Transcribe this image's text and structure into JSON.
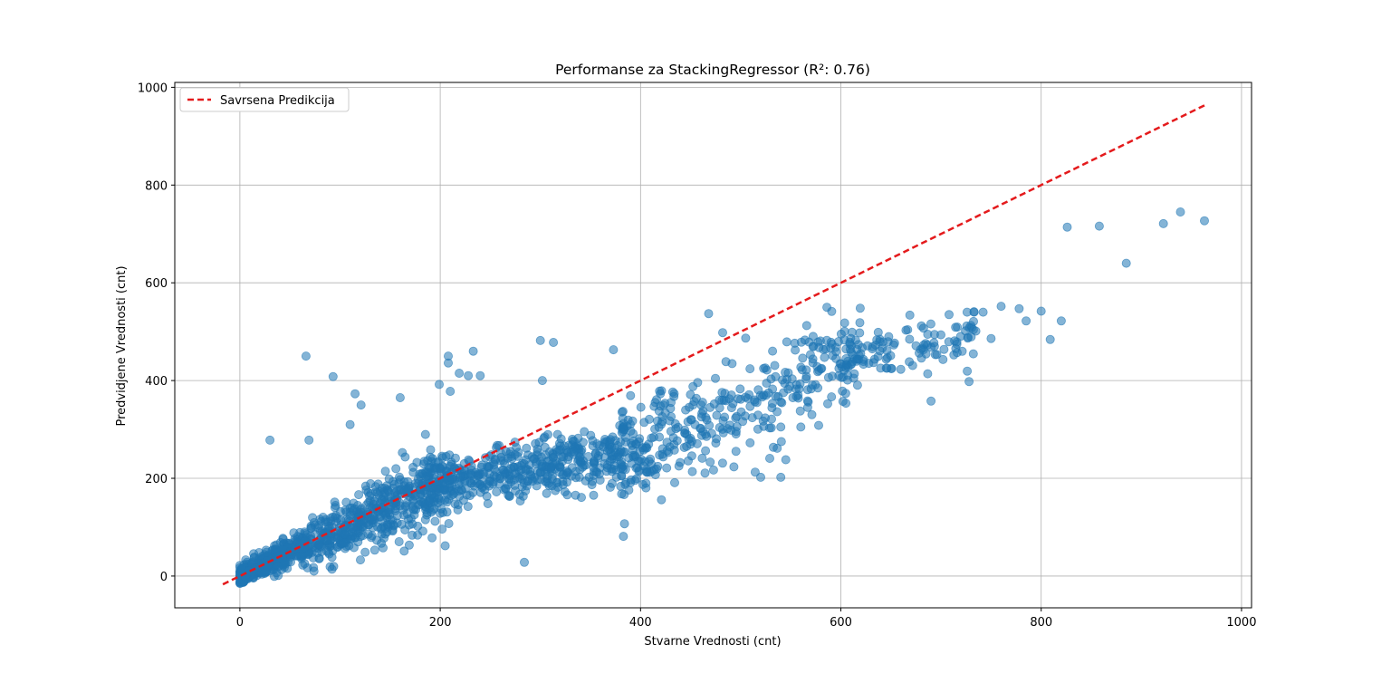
{
  "chart_data": {
    "type": "scatter",
    "title": "Performanse za StackingRegressor (R²: 0.76)",
    "xlabel": "Stvarne Vrednosti (cnt)",
    "ylabel": "Predvidjene Vrednosti (cnt)",
    "xlim": [
      -65,
      1010
    ],
    "ylim": [
      -65,
      1010
    ],
    "xticks": [
      "0",
      "200",
      "400",
      "600",
      "800",
      "1000"
    ],
    "yticks": [
      "0",
      "200",
      "400",
      "600",
      "800",
      "1000"
    ],
    "xtick_values": [
      0,
      200,
      400,
      600,
      800,
      1000
    ],
    "ytick_values": [
      0,
      200,
      400,
      600,
      800,
      1000
    ],
    "grid": true,
    "legend_position": "top-left",
    "point_color": "#1f77b4",
    "point_alpha": 0.55,
    "reference_line": {
      "name": "Savrsena Predikcija",
      "color": "#e41a1c",
      "style": "dashed",
      "x": [
        -17,
        963
      ],
      "y": [
        -17,
        963
      ]
    },
    "outliers": [
      {
        "x": 66,
        "y": 450
      },
      {
        "x": 93,
        "y": 408
      },
      {
        "x": 30,
        "y": 278
      },
      {
        "x": 69,
        "y": 278
      },
      {
        "x": 110,
        "y": 310
      },
      {
        "x": 115,
        "y": 373
      },
      {
        "x": 121,
        "y": 350
      },
      {
        "x": 160,
        "y": 365
      },
      {
        "x": 199,
        "y": 392
      },
      {
        "x": 208,
        "y": 450
      },
      {
        "x": 208,
        "y": 436
      },
      {
        "x": 210,
        "y": 378
      },
      {
        "x": 233,
        "y": 460
      },
      {
        "x": 219,
        "y": 415
      },
      {
        "x": 228,
        "y": 410
      },
      {
        "x": 240,
        "y": 410
      },
      {
        "x": 300,
        "y": 482
      },
      {
        "x": 313,
        "y": 478
      },
      {
        "x": 302,
        "y": 400
      },
      {
        "x": 373,
        "y": 463
      },
      {
        "x": 468,
        "y": 537
      },
      {
        "x": 482,
        "y": 498
      },
      {
        "x": 284,
        "y": 28
      },
      {
        "x": 205,
        "y": 62
      },
      {
        "x": 74,
        "y": 10
      },
      {
        "x": 92,
        "y": 14
      },
      {
        "x": 164,
        "y": 51
      },
      {
        "x": 690,
        "y": 358
      },
      {
        "x": 728,
        "y": 398
      },
      {
        "x": 520,
        "y": 202
      },
      {
        "x": 540,
        "y": 202
      },
      {
        "x": 545,
        "y": 238
      },
      {
        "x": 540,
        "y": 305
      },
      {
        "x": 560,
        "y": 305
      },
      {
        "x": 826,
        "y": 714
      },
      {
        "x": 858,
        "y": 716
      },
      {
        "x": 885,
        "y": 640
      },
      {
        "x": 922,
        "y": 721
      },
      {
        "x": 939,
        "y": 745
      },
      {
        "x": 963,
        "y": 727
      },
      {
        "x": 800,
        "y": 542
      },
      {
        "x": 820,
        "y": 522
      },
      {
        "x": 809,
        "y": 484
      },
      {
        "x": 785,
        "y": 522
      },
      {
        "x": 778,
        "y": 547
      },
      {
        "x": 760,
        "y": 552
      },
      {
        "x": 742,
        "y": 540
      },
      {
        "x": 733,
        "y": 540
      },
      {
        "x": 726,
        "y": 540
      },
      {
        "x": 750,
        "y": 486
      },
      {
        "x": 708,
        "y": 535
      },
      {
        "x": 665,
        "y": 503
      }
    ]
  }
}
